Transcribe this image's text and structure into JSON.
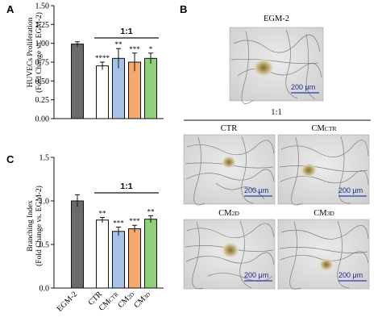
{
  "panels": {
    "A": "A",
    "B": "B",
    "C": "C"
  },
  "chart_data": [
    {
      "type": "bar",
      "panel": "A",
      "categories": [
        "EGM-2",
        "CTR",
        "CM_CTR",
        "CM_2D",
        "CM_3D"
      ],
      "values": [
        0.99,
        0.7,
        0.8,
        0.75,
        0.8
      ],
      "errors": [
        0.03,
        0.05,
        0.13,
        0.12,
        0.07
      ],
      "significance": [
        "",
        "****",
        "**",
        "***",
        "*"
      ],
      "colors": [
        "#6b6b6b",
        "#ffffff",
        "#a6c3e6",
        "#f2a96b",
        "#8fd07a"
      ],
      "ylabel_line1": "HUVECs Proliferation",
      "ylabel_line2": "(Fold Change vs. EGM-2)",
      "ylim": [
        0,
        1.5
      ],
      "yticks": [
        "0.00",
        "0.25",
        "0.50",
        "0.75",
        "1.00",
        "1.25",
        "1.50"
      ],
      "group_label": "1:1"
    },
    {
      "type": "bar",
      "panel": "C",
      "categories": [
        "EGM-2",
        "CTR",
        "CM_CTR",
        "CM_2D",
        "CM_3D"
      ],
      "values": [
        1.0,
        0.78,
        0.65,
        0.68,
        0.79
      ],
      "errors": [
        0.07,
        0.03,
        0.05,
        0.04,
        0.04
      ],
      "significance": [
        "",
        "**",
        "***",
        "***",
        "**"
      ],
      "colors": [
        "#6b6b6b",
        "#ffffff",
        "#a6c3e6",
        "#f2a96b",
        "#8fd07a"
      ],
      "ylabel_line1": "Branching Index",
      "ylabel_line2": "(Fold Change vs. EGM-2)",
      "ylim": [
        0,
        1.5
      ],
      "yticks": [
        "0.0",
        "0.5",
        "1.0",
        "1.5"
      ],
      "group_label": "1:1"
    }
  ],
  "x_labels": {
    "egm": "EGM-2",
    "ctr": "CTR",
    "cmctr_main": "CM",
    "cmctr_sub": "CTR",
    "cm2d_main": "CM",
    "cm2d_sub": "2D",
    "cm3d_main": "CM",
    "cm3d_sub": "3D"
  },
  "micrographs": {
    "egm_title": "EGM-2",
    "group_label": "1:1",
    "ctr_title": "CTR",
    "cmctr_title_main": "CM",
    "cmctr_title_sub": "CTR",
    "cm2d_title_main": "CM",
    "cm2d_title_sub": "2D",
    "cm3d_title_main": "CM",
    "cm3d_title_sub": "3D",
    "scale_bar_label": "200 μm"
  }
}
